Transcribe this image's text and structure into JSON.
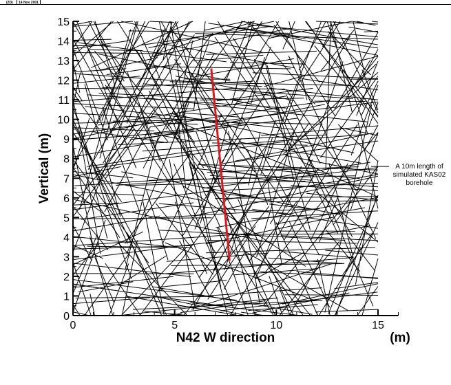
{
  "header": {
    "mode_tag": "(2D)",
    "date_tag": "14 Nov 2001"
  },
  "colors": {
    "fractures": "#000000",
    "borehole": "#e0171d",
    "background": "#ffffff"
  },
  "chart_data": {
    "type": "line",
    "title": "",
    "xlabel": "N42 W direction",
    "x_unit_label": "(m)",
    "ylabel": "Vertical (m)",
    "xlim": [
      0,
      16
    ],
    "ylim": [
      0,
      15
    ],
    "x_ticks": [
      0,
      5,
      10,
      15
    ],
    "y_ticks": [
      0,
      1,
      2,
      3,
      4,
      5,
      6,
      7,
      8,
      9,
      10,
      11,
      12,
      13,
      14,
      15
    ],
    "grid": false,
    "fracture_field": {
      "domain": [
        [
          0,
          15
        ],
        [
          0,
          15
        ]
      ],
      "color": "black",
      "note_shown": false
    },
    "borehole": {
      "name": "A 10m length of simulated KAS02 borehole",
      "points": [
        [
          6.8,
          12.6
        ],
        [
          7.7,
          2.8
        ]
      ],
      "color": "red"
    },
    "annotation": {
      "lines": [
        "A 10m length of",
        "simulated KAS02",
        "borehole"
      ],
      "anchor_y": 7.6
    }
  }
}
